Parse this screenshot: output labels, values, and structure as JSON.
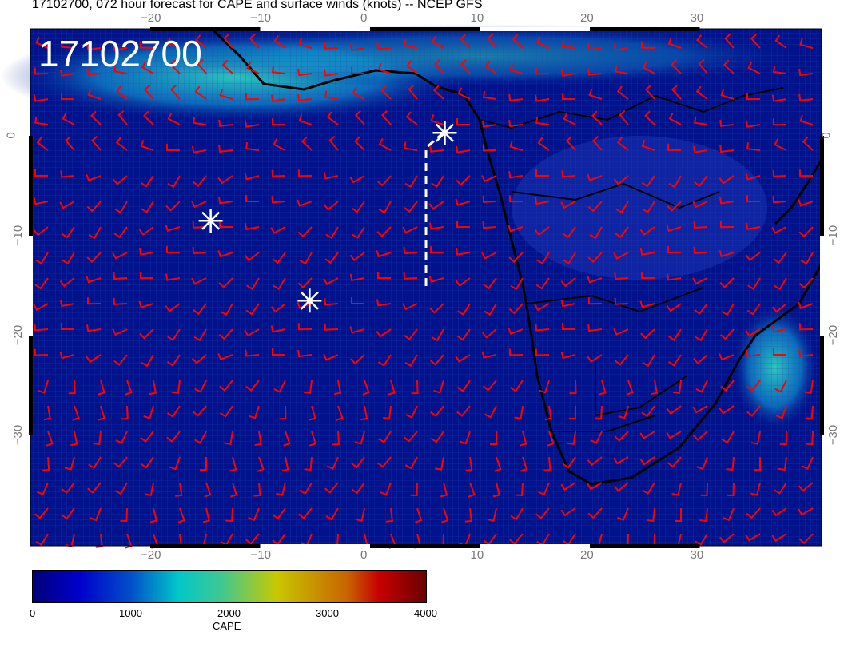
{
  "title": "17102700, 072 hour forecast for CAPE and surface winds (knots) -- NCEP GFS",
  "stamp": "17102700",
  "lon_ticks": [
    "−20",
    "−10",
    "0",
    "10",
    "20",
    "30"
  ],
  "lat_ticks": [
    "0",
    "−10",
    "−20",
    "−30"
  ],
  "colorbar": {
    "label": "CAPE",
    "ticks": [
      "0",
      "1000",
      "2000",
      "3000",
      "4000"
    ],
    "range": [
      0,
      4000
    ]
  },
  "colors": {
    "ocean_base": "#00108a",
    "barb": "#ff0000",
    "coast": "#000000",
    "markers": "#ffffff"
  },
  "map": {
    "lon_range": [
      -31,
      41
    ],
    "lat_range": [
      -41,
      11
    ],
    "markers": [
      {
        "lon": -14.5,
        "lat": -8.5
      },
      {
        "lon": -5.5,
        "lat": -16.5
      },
      {
        "lon": 6.8,
        "lat": 0.3
      }
    ]
  }
}
